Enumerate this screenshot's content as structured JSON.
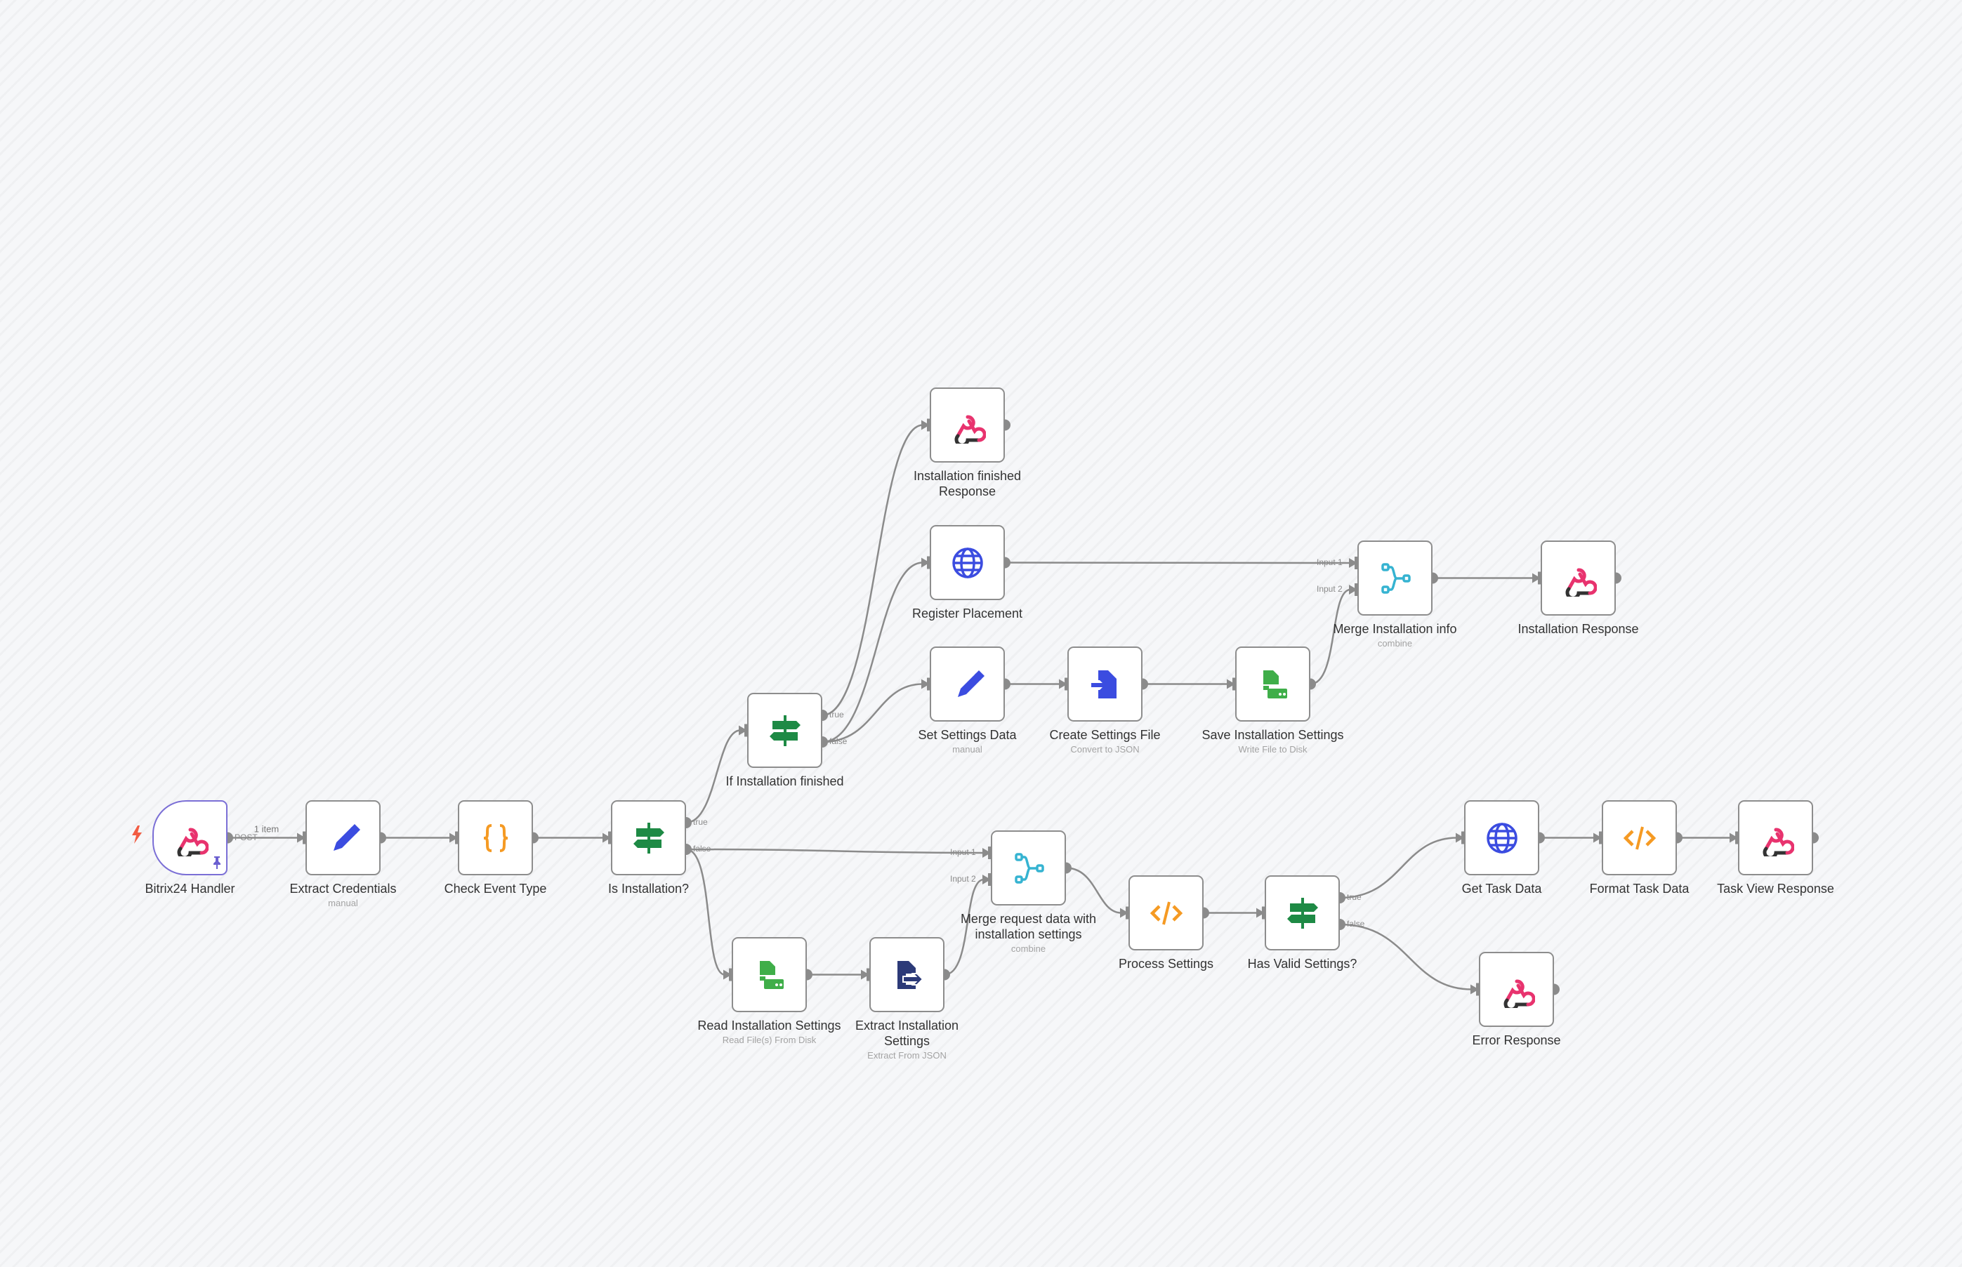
{
  "colors": {
    "edge": "#8b8b8b",
    "node_border": "#8d8d8d",
    "trigger_border": "#7b6fd6",
    "webhook": "#e8336e",
    "set": "#3b4ce0",
    "code": "#f59a23",
    "if": "#1e8a45",
    "http": "#3b4ce0",
    "merge": "#35b3d1",
    "file": "#3fae49",
    "convert": "#3b4ce0",
    "extract": "#2c3a78"
  },
  "nodes": [
    {
      "id": "bitrix",
      "name": "Bitrix24 Handler",
      "subtitle": "",
      "icon": "webhook-icon",
      "trigger": true
    },
    {
      "id": "extractCred",
      "name": "Extract Credentials",
      "subtitle": "manual",
      "icon": "pencil-icon"
    },
    {
      "id": "checkEvent",
      "name": "Check Event Type",
      "subtitle": "",
      "icon": "braces-icon"
    },
    {
      "id": "isInst",
      "name": "Is Installation?",
      "subtitle": "",
      "icon": "signpost-icon"
    },
    {
      "id": "ifFinished",
      "name": "If Installation finished",
      "subtitle": "",
      "icon": "signpost-icon"
    },
    {
      "id": "finishedResp",
      "name": "Installation finished Response",
      "subtitle": "",
      "icon": "webhook-icon"
    },
    {
      "id": "register",
      "name": "Register Placement",
      "subtitle": "",
      "icon": "globe-icon"
    },
    {
      "id": "setSettings",
      "name": "Set Settings Data",
      "subtitle": "manual",
      "icon": "pencil-icon"
    },
    {
      "id": "createFile",
      "name": "Create Settings File",
      "subtitle": "Convert to JSON",
      "icon": "file-convert-icon"
    },
    {
      "id": "saveSettings",
      "name": "Save Installation Settings",
      "subtitle": "Write File to Disk",
      "icon": "file-disk-icon"
    },
    {
      "id": "mergeInst",
      "name": "Merge Installation info",
      "subtitle": "combine",
      "icon": "merge-icon"
    },
    {
      "id": "installResp",
      "name": "Installation Response",
      "subtitle": "",
      "icon": "webhook-icon"
    },
    {
      "id": "readSettings",
      "name": "Read Installation Settings",
      "subtitle": "Read File(s) From Disk",
      "icon": "file-disk-icon"
    },
    {
      "id": "extractInst",
      "name": "Extract Installation Settings",
      "subtitle": "Extract From JSON",
      "icon": "file-extract-icon"
    },
    {
      "id": "mergeReq",
      "name": "Merge request data with installation settings",
      "subtitle": "combine",
      "icon": "merge-icon"
    },
    {
      "id": "process",
      "name": "Process Settings",
      "subtitle": "",
      "icon": "code-icon"
    },
    {
      "id": "hasValid",
      "name": "Has Valid Settings?",
      "subtitle": "",
      "icon": "signpost-icon"
    },
    {
      "id": "getTask",
      "name": "Get Task Data",
      "subtitle": "",
      "icon": "globe-icon"
    },
    {
      "id": "formatTask",
      "name": "Format Task Data",
      "subtitle": "",
      "icon": "code-icon"
    },
    {
      "id": "taskView",
      "name": "Task View Response",
      "subtitle": "",
      "icon": "webhook-icon"
    },
    {
      "id": "errorResp",
      "name": "Error Response",
      "subtitle": "",
      "icon": "webhook-icon"
    }
  ],
  "port_labels": {
    "bitrix": {
      "out": [
        "POST"
      ]
    },
    "isInst": {
      "out": [
        "true",
        "false"
      ]
    },
    "ifFinished": {
      "out": [
        "true",
        "false"
      ]
    },
    "hasValid": {
      "out": [
        "true",
        "false"
      ]
    },
    "mergeInst": {
      "in": [
        "Input 1",
        "Input 2"
      ]
    },
    "mergeReq": {
      "in": [
        "Input 1",
        "Input 2"
      ]
    }
  },
  "connections": [
    {
      "from": "bitrix",
      "out": 0,
      "to": "extractCred",
      "in": 0,
      "label": "1 item"
    },
    {
      "from": "extractCred",
      "out": 0,
      "to": "checkEvent",
      "in": 0
    },
    {
      "from": "checkEvent",
      "out": 0,
      "to": "isInst",
      "in": 0
    },
    {
      "from": "isInst",
      "out": 0,
      "to": "ifFinished",
      "in": 0
    },
    {
      "from": "isInst",
      "out": 1,
      "to": "mergeReq",
      "in": 0
    },
    {
      "from": "isInst",
      "out": 1,
      "to": "readSettings",
      "in": 0
    },
    {
      "from": "ifFinished",
      "out": 0,
      "to": "finishedResp",
      "in": 0
    },
    {
      "from": "ifFinished",
      "out": 1,
      "to": "register",
      "in": 0
    },
    {
      "from": "ifFinished",
      "out": 1,
      "to": "setSettings",
      "in": 0
    },
    {
      "from": "register",
      "out": 0,
      "to": "mergeInst",
      "in": 0
    },
    {
      "from": "setSettings",
      "out": 0,
      "to": "createFile",
      "in": 0
    },
    {
      "from": "createFile",
      "out": 0,
      "to": "saveSettings",
      "in": 0
    },
    {
      "from": "saveSettings",
      "out": 0,
      "to": "mergeInst",
      "in": 1
    },
    {
      "from": "mergeInst",
      "out": 0,
      "to": "installResp",
      "in": 0
    },
    {
      "from": "readSettings",
      "out": 0,
      "to": "extractInst",
      "in": 0
    },
    {
      "from": "extractInst",
      "out": 0,
      "to": "mergeReq",
      "in": 1
    },
    {
      "from": "mergeReq",
      "out": 0,
      "to": "process",
      "in": 0
    },
    {
      "from": "process",
      "out": 0,
      "to": "hasValid",
      "in": 0
    },
    {
      "from": "hasValid",
      "out": 0,
      "to": "getTask",
      "in": 0
    },
    {
      "from": "hasValid",
      "out": 1,
      "to": "errorResp",
      "in": 0
    },
    {
      "from": "getTask",
      "out": 0,
      "to": "formatTask",
      "in": 0
    },
    {
      "from": "formatTask",
      "out": 0,
      "to": "taskView",
      "in": 0
    }
  ]
}
